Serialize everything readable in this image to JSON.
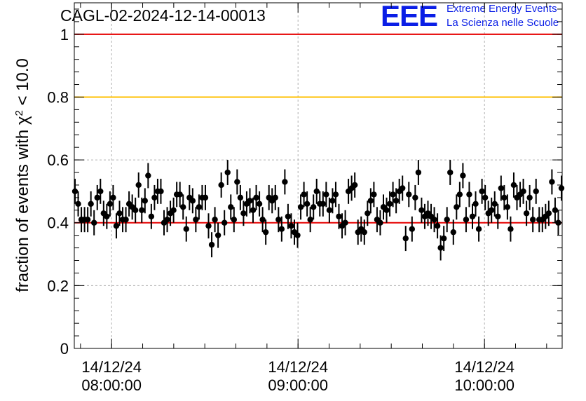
{
  "chart_data": {
    "type": "scatter",
    "title": "CAGL-02-2024-12-14-00013",
    "ylabel": "fraction of events with χ² < 10.0",
    "ylim": [
      0,
      1.1
    ],
    "yticks": [
      "0",
      "0.2",
      "0.4",
      "0.6",
      "0.8",
      "1"
    ],
    "xticks": [
      {
        "date": "14/12/24",
        "time": "08:00:00"
      },
      {
        "date": "14/12/24",
        "time": "09:00:00"
      },
      {
        "date": "14/12/24",
        "time": "10:00:00"
      }
    ],
    "grid": true,
    "reference_lines": [
      {
        "y": 1.0,
        "color": "#e60000"
      },
      {
        "y": 0.8,
        "color": "#ffc000"
      },
      {
        "y": 0.4,
        "color": "#e60000"
      }
    ],
    "error": 0.04,
    "x_start": "07:48",
    "x_end": "10:25",
    "series": [
      {
        "values": [
          0.5,
          0.46,
          0.41,
          0.41,
          0.41,
          0.46,
          0.4,
          0.48,
          0.5,
          0.43,
          0.42,
          0.46,
          0.48,
          0.39,
          0.43,
          0.41,
          0.41,
          0.46,
          0.45,
          0.44,
          0.52,
          0.44,
          0.47,
          0.55,
          0.42,
          0.48,
          0.5,
          0.5,
          0.4,
          0.41,
          0.43,
          0.44,
          0.49,
          0.49,
          0.45,
          0.38,
          0.48,
          0.47,
          0.41,
          0.45,
          0.48,
          0.48,
          0.39,
          0.33,
          0.41,
          0.36,
          0.52,
          0.4,
          0.56,
          0.45,
          0.41,
          0.53,
          0.48,
          0.43,
          0.46,
          0.47,
          0.44,
          0.48,
          0.46,
          0.41,
          0.37,
          0.48,
          0.47,
          0.48,
          0.41,
          0.38,
          0.53,
          0.42,
          0.39,
          0.37,
          0.36,
          0.45,
          0.49,
          0.46,
          0.41,
          0.45,
          0.5,
          0.46,
          0.46,
          0.49,
          0.44,
          0.47,
          0.49,
          0.42,
          0.39,
          0.4,
          0.5,
          0.51,
          0.52,
          0.37,
          0.38,
          0.37,
          0.43,
          0.47,
          0.49,
          0.41,
          0.4,
          0.45,
          0.44,
          0.46,
          0.49,
          0.47,
          0.5,
          0.51,
          0.35,
          0.49,
          0.38,
          0.48,
          0.56,
          0.44,
          0.42,
          0.43,
          0.42,
          0.41,
          0.39,
          0.32,
          0.35,
          0.41,
          0.56,
          0.37,
          0.45,
          0.49,
          0.55,
          0.41,
          0.49,
          0.42,
          0.46,
          0.38,
          0.5,
          0.48,
          0.43,
          0.44,
          0.46,
          0.42,
          0.51,
          0.48,
          0.45,
          0.38,
          0.52,
          0.48,
          0.49,
          0.5,
          0.43,
          0.48,
          0.41,
          0.5,
          0.41,
          0.41,
          0.42,
          0.43,
          0.53,
          0.44,
          0.4,
          0.51
        ]
      }
    ]
  },
  "logo": {
    "mark": "EEE",
    "line1": "Extreme Energy Events",
    "line2": "La Scienza nelle Scuole"
  },
  "colors": {
    "frame": "#000000",
    "grid": "#b0b0b0",
    "marker": "#000000",
    "logo": "#0a1ee6"
  }
}
